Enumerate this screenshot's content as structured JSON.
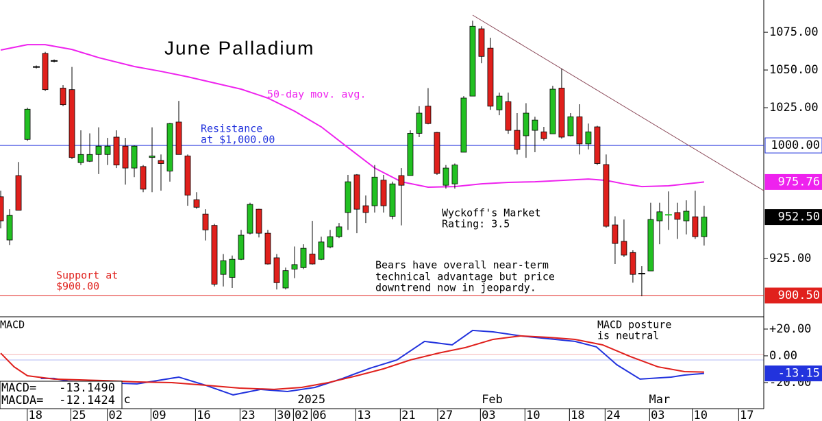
{
  "chart_data": [
    {
      "type": "candlestick",
      "title": "June Palladium",
      "x": [
        0,
        1,
        2,
        3,
        4,
        5,
        6,
        7,
        8,
        9,
        10,
        11,
        12,
        13,
        14,
        15,
        16,
        17,
        18,
        19,
        20,
        21,
        22,
        23,
        24,
        25,
        26,
        27,
        28,
        29,
        30,
        31,
        32,
        33,
        34,
        35,
        36,
        37,
        38,
        39,
        40,
        41,
        42,
        43,
        44,
        45,
        46,
        47,
        48,
        49,
        50,
        51,
        52,
        53,
        54,
        55,
        56,
        57,
        58,
        59,
        60,
        61,
        62,
        63,
        64,
        65,
        66,
        67,
        68,
        69,
        70,
        71,
        72,
        73,
        74,
        75,
        76,
        77,
        78,
        79
      ],
      "open": [
        966,
        937.3,
        980,
        1004,
        1052,
        1061,
        1056,
        1038,
        1037,
        988.6,
        989.5,
        994,
        994,
        1005.5,
        999.5,
        985,
        986,
        992,
        990,
        983,
        1015.5,
        993,
        964,
        954.5,
        947,
        914.5,
        912.5,
        924.5,
        941.8,
        957.7,
        941.8,
        925.5,
        905.5,
        918,
        919,
        928,
        924.5,
        932.7,
        939.5,
        955.5,
        980.5,
        960,
        960,
        977,
        953,
        980,
        980,
        1008,
        1026,
        1008.6,
        973.6,
        974.5,
        995.5,
        1032.7,
        1077.3,
        1064.5,
        1023.6,
        1029,
        1010,
        1006.4,
        1010,
        1009,
        1007.7,
        1038,
        1006.4,
        1019,
        1001,
        1012.3,
        987.3,
        947.3,
        936.4,
        929,
        915,
        916.8,
        950,
        954,
        955.5,
        950,
        952.7,
        939.5
      ],
      "high": [
        970,
        957.7,
        989,
        1025,
        1053,
        1062,
        1057,
        1040,
        1052,
        1010,
        1008,
        1012,
        1005,
        1010,
        1005,
        1000,
        987,
        1012,
        994,
        1015,
        1029.5,
        994,
        969,
        957.7,
        948,
        928,
        927,
        944,
        962,
        958,
        944,
        928,
        919,
        933,
        934.5,
        950,
        939.5,
        944,
        948.6,
        980.5,
        981,
        966.8,
        987,
        980.5,
        976,
        985,
        1010,
        1026,
        1038,
        1009,
        987,
        988,
        1032.7,
        1082.7,
        1079,
        1071.4,
        1035,
        1035,
        1021.4,
        1028,
        1019,
        1012.3,
        1039.5,
        1051,
        1021.4,
        1027.3,
        1014.5,
        1013,
        994,
        953,
        950.9,
        930.5,
        920,
        962,
        962,
        969.5,
        962,
        963.6,
        970,
        960
      ],
      "low": [
        945,
        934,
        957,
        1003,
        1051,
        1036,
        1055,
        1026,
        991,
        987,
        989,
        981,
        987,
        985,
        974,
        979,
        969,
        969,
        970,
        976,
        994,
        960,
        958,
        937,
        906.5,
        906.5,
        905.5,
        924,
        941,
        939,
        921,
        904.5,
        904.5,
        912,
        918,
        921,
        924,
        931.8,
        938.6,
        944,
        941.8,
        948.6,
        955.5,
        955.5,
        951,
        947,
        980,
        1005.5,
        1014,
        980.5,
        971.4,
        971.4,
        995.5,
        1032.7,
        1054.5,
        1023.6,
        1020,
        1007.7,
        994,
        991.8,
        995.5,
        1003.2,
        1007.7,
        1004.5,
        1006,
        994,
        997.3,
        987,
        945.5,
        921.4,
        926,
        909,
        900,
        916.8,
        934.5,
        944,
        938,
        941,
        938,
        933.6
      ],
      "close": [
        950,
        953.6,
        957,
        1024,
        1052,
        1037,
        1056,
        1027,
        992,
        994,
        994,
        999.5,
        999.5,
        987,
        985,
        999.5,
        971,
        993,
        988,
        1014.5,
        994,
        967,
        959,
        944,
        908,
        923.6,
        924.5,
        940.5,
        960.9,
        941.8,
        921.4,
        909,
        917,
        921,
        931.8,
        921.4,
        936,
        939.5,
        946,
        975.9,
        957.7,
        955.5,
        979,
        960,
        974.5,
        973.6,
        1008,
        1021.4,
        1014.5,
        981.4,
        985,
        987,
        1031.4,
        1079,
        1059,
        1026,
        1032.7,
        1010,
        997.3,
        1021.4,
        1016.8,
        1004.5,
        1037.3,
        1005.5,
        1019,
        1001,
        1009,
        988,
        946.4,
        935,
        927.3,
        914.5,
        915,
        950.9,
        956,
        954.5,
        951,
        956.4,
        939.5,
        952.5
      ],
      "up_color": "#22c022",
      "down_color": "#e0201c",
      "xlim": [
        -0.08,
        85.7
      ],
      "ylim": [
        886.4,
        1096.4
      ],
      "yticks": [
        {
          "value": 1075,
          "label": "1075.00"
        },
        {
          "value": 1050,
          "label": "1050.00"
        },
        {
          "value": 1025,
          "label": "1025.00"
        },
        {
          "value": 925,
          "label": "925.00"
        }
      ],
      "series": [
        {
          "name": "50-day mov. avg.",
          "color": "#ee22ee",
          "x": [
            0,
            3,
            5,
            8,
            11,
            15,
            18,
            21,
            24,
            27,
            30,
            33,
            36,
            39,
            42,
            45,
            48,
            51,
            54,
            57,
            60,
            63,
            66,
            68,
            70,
            72,
            75,
            79
          ],
          "values": [
            1063.2,
            1066.8,
            1066.8,
            1063.6,
            1058.2,
            1052.3,
            1049.1,
            1045.5,
            1041.4,
            1037.3,
            1031.4,
            1022.7,
            1012.3,
            998.6,
            985,
            975.9,
            972.3,
            972.7,
            974.5,
            975.5,
            975.9,
            976.8,
            977.7,
            976.8,
            974.5,
            972.7,
            973.2,
            975.76
          ]
        }
      ],
      "trendline": {
        "color": "#8b4a5a",
        "x": [
          53,
          85.7
        ],
        "values": [
          1086.4,
          970
        ]
      },
      "hlines": [
        {
          "value": 1000,
          "color": "#2233dd"
        },
        {
          "value": 900.5,
          "color": "#e0201c"
        }
      ],
      "price_labels": [
        {
          "value": 1000,
          "label": "1000.00",
          "fill": "#ffffff",
          "text_color": "#000000",
          "stroke": "#2233dd"
        },
        {
          "value": 975.76,
          "label": "975.76",
          "fill": "#ee22ee",
          "text_color": "#ffffff",
          "stroke": "#ee22ee"
        },
        {
          "value": 952.5,
          "label": "952.50",
          "fill": "#000000",
          "text_color": "#ffffff",
          "stroke": "#000000"
        },
        {
          "value": 900.5,
          "label": "900.50",
          "fill": "#e0201c",
          "text_color": "#ffffff",
          "stroke": "#e0201c"
        }
      ],
      "annotations": {
        "resistance": [
          "Resistance",
          "at $1,000.00"
        ],
        "rating": [
          "Wyckoff's Market",
          "Rating: 3.5"
        ],
        "bears": [
          "Bears have overall near-term",
          "technical advantage but price",
          "downtrend now in jeopardy."
        ],
        "support": [
          "Support at",
          "$900.00"
        ]
      }
    },
    {
      "type": "line",
      "title": "MACD",
      "note": [
        "MACD posture",
        "is neutral"
      ],
      "xlim": [
        -0.08,
        85.7
      ],
      "ylim": [
        -39.5,
        29.2
      ],
      "yticks": [
        {
          "value": 20,
          "label": "+20.00"
        },
        {
          "value": 0,
          "label": "0.00"
        },
        {
          "value": -20,
          "label": "-20.00"
        }
      ],
      "xticks": [
        {
          "value": 3.9,
          "label": "18"
        },
        {
          "value": 8.8,
          "label": "25"
        },
        {
          "value": 12.9,
          "label": "02"
        },
        {
          "value": 17.8,
          "label": "09"
        },
        {
          "value": 22.8,
          "label": "16"
        },
        {
          "value": 27.8,
          "label": "23"
        },
        {
          "value": 31.8,
          "label": "30"
        },
        {
          "value": 33.8,
          "label": "02"
        },
        {
          "value": 35.8,
          "label": "06"
        },
        {
          "value": 40.8,
          "label": "13"
        },
        {
          "value": 45.8,
          "label": "21"
        },
        {
          "value": 50,
          "label": "27"
        },
        {
          "value": 54.8,
          "label": "03"
        },
        {
          "value": 59.8,
          "label": "10"
        },
        {
          "value": 64.8,
          "label": "18"
        },
        {
          "value": 68.8,
          "label": "24"
        },
        {
          "value": 73.8,
          "label": "03"
        },
        {
          "value": 78.6,
          "label": "10"
        },
        {
          "value": 83.8,
          "label": "17"
        }
      ],
      "month_labels": [
        {
          "value": 14.2,
          "label": "c"
        },
        {
          "value": 34.9,
          "label": "2025"
        },
        {
          "value": 55.2,
          "label": "Feb"
        },
        {
          "value": 74,
          "label": "Mar"
        }
      ],
      "series": [
        {
          "name": "MACD=",
          "color": "#2233dd",
          "last_label": "-13.1490",
          "x": [
            4.5,
            6,
            7.6,
            11.5,
            15.3,
            20,
            23,
            26.1,
            29.2,
            32.2,
            35.3,
            38.4,
            41.5,
            44.5,
            47.6,
            50.7,
            53,
            55.3,
            58.4,
            61.5,
            64.5,
            66.9,
            69.2,
            71.8,
            75.3,
            76.8,
            79
          ],
          "values": [
            -16.9,
            -16.9,
            -19,
            -20,
            -21,
            -15.9,
            -22,
            -29.2,
            -25.1,
            -26.7,
            -23.6,
            -16.9,
            -9.2,
            -3.1,
            10.8,
            8.2,
            19,
            17.9,
            14.9,
            12.8,
            10.8,
            6.7,
            -6.7,
            -17.4,
            -15.9,
            -14.4,
            -13.149
          ]
        },
        {
          "name": "MACDA=",
          "color": "#e0201c",
          "last_label": "-12.1424",
          "x": [
            0,
            1.5,
            3,
            6,
            11.5,
            15.3,
            19.2,
            23,
            26.8,
            30.7,
            33.8,
            36.8,
            40,
            43,
            46,
            49.2,
            52.2,
            55.3,
            58.4,
            61.5,
            64.5,
            67.6,
            70.7,
            73.8,
            76.8,
            79
          ],
          "values": [
            2,
            -8.2,
            -14.9,
            -17.4,
            -18.5,
            -19.5,
            -20,
            -22,
            -24.1,
            -25.1,
            -23.6,
            -20,
            -14.9,
            -9.7,
            -3.1,
            2.1,
            6.2,
            12.3,
            14.9,
            13.8,
            12.3,
            8.2,
            -0.5,
            -8.2,
            -11.8,
            -12.1424
          ]
        }
      ],
      "price_label": {
        "value": -13.149,
        "label": "-13.15",
        "fill": "#2233dd",
        "text_color": "#ffffff"
      }
    }
  ]
}
